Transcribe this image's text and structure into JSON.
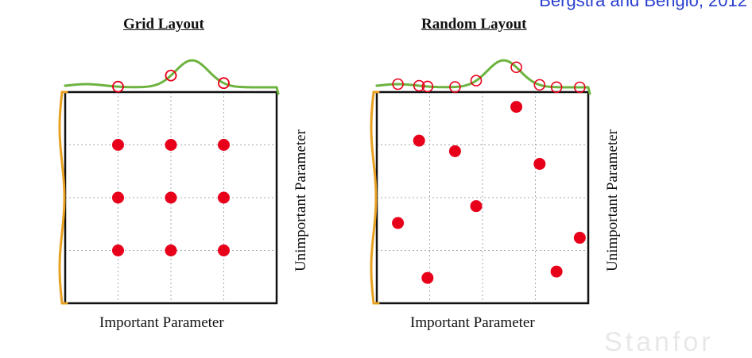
{
  "citation": "Bergstra and Bengio, 2012",
  "colors": {
    "point": "#e8001a",
    "marginal_important": "#6db33f",
    "marginal_unimportant": "#e8a020",
    "frame": "#111111",
    "grid": "#aaaaaa"
  },
  "panels": [
    {
      "title": "Grid Layout",
      "xlabel": "Important Parameter",
      "ylabel": "Unimportant Parameter",
      "points": [
        [
          0.25,
          0.25
        ],
        [
          0.5,
          0.25
        ],
        [
          0.75,
          0.25
        ],
        [
          0.25,
          0.5
        ],
        [
          0.5,
          0.5
        ],
        [
          0.75,
          0.5
        ],
        [
          0.25,
          0.75
        ],
        [
          0.5,
          0.75
        ],
        [
          0.75,
          0.75
        ]
      ]
    },
    {
      "title": "Random Layout",
      "xlabel": "Important Parameter",
      "ylabel": "Unimportant Parameter",
      "points": [
        [
          0.1,
          0.62
        ],
        [
          0.2,
          0.23
        ],
        [
          0.24,
          0.88
        ],
        [
          0.37,
          0.28
        ],
        [
          0.47,
          0.54
        ],
        [
          0.66,
          0.07
        ],
        [
          0.77,
          0.34
        ],
        [
          0.85,
          0.85
        ],
        [
          0.96,
          0.69
        ]
      ]
    }
  ],
  "watermark": "Stanfor"
}
